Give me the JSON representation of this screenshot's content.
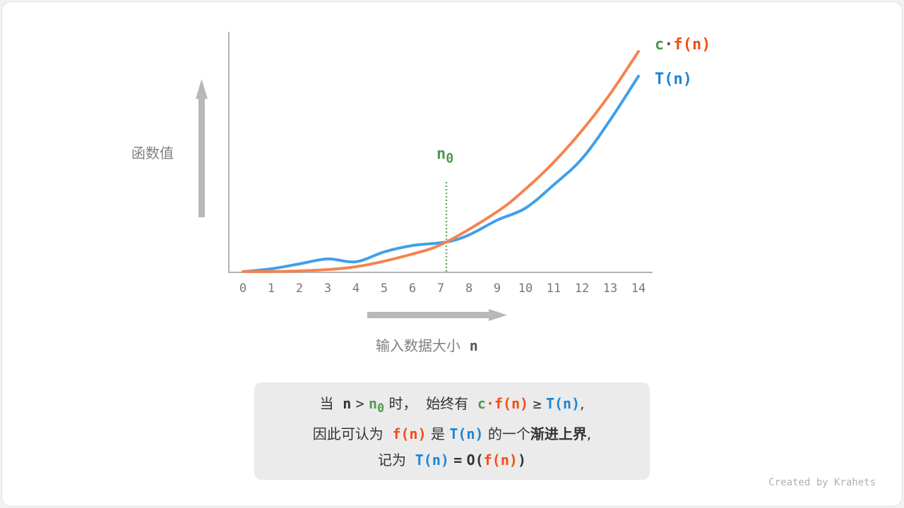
{
  "y_label": "函数值",
  "x_label": "输入数据大小",
  "x_var": "n",
  "x_ticks": [
    "0",
    "1",
    "2",
    "3",
    "4",
    "5",
    "6",
    "7",
    "8",
    "9",
    "10",
    "11",
    "12",
    "13",
    "14"
  ],
  "n0_label": "n",
  "n0_sub": "0",
  "legend": {
    "c": "c",
    "dot": "·",
    "cf": "f(n)",
    "t": "T(n)"
  },
  "colors": {
    "cf": "#f5834f",
    "t": "#3fa0ea",
    "n0": "#4f9a4f",
    "axis": "#b3b3b3"
  },
  "note": {
    "l1": [
      "当",
      "n",
      ">",
      "n",
      "0",
      "时，",
      "始终有",
      "c",
      "·f(n)",
      "≥",
      "T(n)",
      ","
    ],
    "l2": [
      "因此可认为",
      "f(n)",
      "是",
      "T(n)",
      "的一个",
      "渐进上界",
      ","
    ],
    "l3": [
      "记为",
      "T(n)",
      "=",
      "O(",
      "f(n)",
      ")"
    ]
  },
  "credit": "Created by Krahets"
}
